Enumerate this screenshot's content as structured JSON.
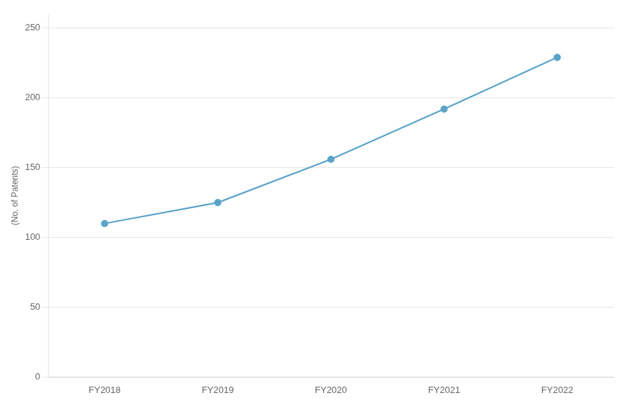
{
  "chart_data": {
    "type": "line",
    "ylabel": "(No. of Patents)",
    "categories": [
      "FY2018",
      "FY2019",
      "FY2020",
      "FY2021",
      "FY2022"
    ],
    "values": [
      110,
      125,
      156,
      192,
      229
    ],
    "color": "#5ba3c9",
    "marker": "circle",
    "ylim": [
      0,
      260
    ],
    "yticks": [
      0,
      50,
      100,
      150,
      200,
      250
    ],
    "grid": true
  }
}
